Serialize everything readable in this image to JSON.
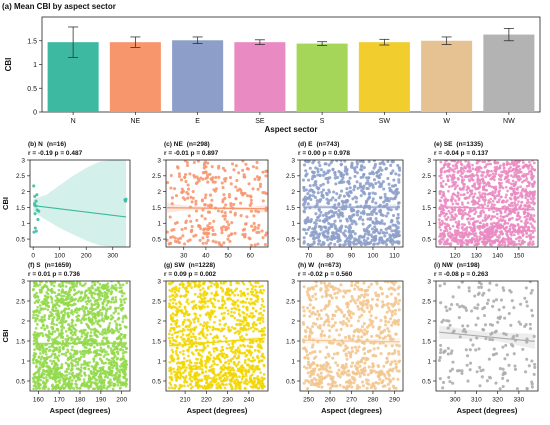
{
  "chart_data": [
    {
      "type": "bar",
      "title": "(a) Mean CBI by aspect sector",
      "xlabel": "Aspect sector",
      "ylabel": "CBI",
      "ylim": [
        0,
        2.0
      ],
      "yticks": [
        0.0,
        0.5,
        1.0,
        1.5
      ],
      "grid": false,
      "categories": [
        "N",
        "NE",
        "E",
        "SE",
        "S",
        "SW",
        "W",
        "NW"
      ],
      "values": [
        1.47,
        1.47,
        1.51,
        1.47,
        1.44,
        1.47,
        1.5,
        1.63
      ],
      "error": [
        0.32,
        0.11,
        0.07,
        0.05,
        0.04,
        0.06,
        0.08,
        0.13
      ],
      "colors": [
        "#3cb9a0",
        "#f7956d",
        "#8d9fc9",
        "#e98ac2",
        "#a5d65a",
        "#f2cd2e",
        "#e6c292",
        "#b3b3b3"
      ]
    },
    {
      "type": "scatter",
      "panel": "(b) N",
      "n": "(n=16)",
      "stats": "r = -0.19  p = 0.487",
      "color": "#3cb9a0",
      "xlim": [
        -12,
        365
      ],
      "xticks": [
        0,
        100,
        200,
        300
      ],
      "ylim": [
        0.25,
        3.0
      ],
      "yticks": [
        0.5,
        1.0,
        1.5,
        2.0,
        2.5,
        3.0
      ],
      "ylabel": "CBI",
      "xlabel": "",
      "trend": {
        "x": [
          0,
          350
        ],
        "y": [
          1.56,
          1.2
        ]
      },
      "band": {
        "x": [
          0,
          50,
          100,
          150,
          200,
          250,
          300,
          350
        ],
        "lo": [
          1.36,
          1.1,
          0.85,
          0.65,
          0.45,
          0.3,
          0.25,
          0.25
        ],
        "hi": [
          1.76,
          1.9,
          2.2,
          2.5,
          2.75,
          2.95,
          3.0,
          3.0
        ]
      },
      "x": [
        2,
        3,
        5,
        6,
        7,
        8,
        10,
        11,
        12,
        14,
        15,
        18,
        21,
        346,
        348,
        350
      ],
      "y": [
        2.18,
        0.72,
        1.62,
        1.85,
        1.3,
        0.85,
        1.55,
        1.7,
        0.75,
        1.9,
        1.42,
        1.12,
        1.38,
        1.74,
        1.7,
        1.76
      ]
    },
    {
      "type": "scatter",
      "panel": "(c) NE",
      "n": "(n=298)",
      "stats": "r = -0.01  p = 0.897",
      "color": "#f7956d",
      "xlim": [
        22,
        68
      ],
      "xticks": [
        30,
        40,
        50,
        60
      ],
      "ylim": [
        0.25,
        3.0
      ],
      "yticks": [
        0.5,
        1.0,
        1.5,
        2.0,
        2.5,
        3.0
      ],
      "ylabel": "",
      "xlabel": "",
      "n_points": 298,
      "seed": 21,
      "trend": {
        "x": [
          22.5,
          67.5
        ],
        "y": [
          1.49,
          1.46
        ]
      },
      "band": {
        "x": [
          22.5,
          30,
          45,
          60,
          67.5
        ],
        "lo": [
          1.33,
          1.4,
          1.44,
          1.4,
          1.33
        ],
        "hi": [
          1.65,
          1.56,
          1.51,
          1.52,
          1.59
        ]
      }
    },
    {
      "type": "scatter",
      "panel": "(d) E",
      "n": "(n=743)",
      "stats": "r = 0.00  p = 0.978",
      "color": "#8d9fc9",
      "xlim": [
        66,
        114
      ],
      "xticks": [
        70,
        80,
        90,
        100,
        110
      ],
      "ylim": [
        0.25,
        3.0
      ],
      "yticks": [
        0.5,
        1.0,
        1.5,
        2.0,
        2.5,
        3.0
      ],
      "ylabel": "",
      "xlabel": "",
      "n_points": 743,
      "seed": 37,
      "trend": {
        "x": [
          67.5,
          112.5
        ],
        "y": [
          1.51,
          1.51
        ]
      },
      "band": {
        "x": [
          67.5,
          90,
          112.5
        ],
        "lo": [
          1.42,
          1.48,
          1.42
        ],
        "hi": [
          1.6,
          1.54,
          1.6
        ]
      }
    },
    {
      "type": "scatter",
      "panel": "(e) SE",
      "n": "(n=1335)",
      "stats": "r = -0.04  p = 0.137",
      "color": "#e98ac2",
      "xlim": [
        111,
        159
      ],
      "xticks": [
        120,
        130,
        140,
        150
      ],
      "ylim": [
        0.25,
        3.0
      ],
      "yticks": [
        0.5,
        1.0,
        1.5,
        2.0,
        2.5,
        3.0
      ],
      "ylabel": "",
      "xlabel": "",
      "n_points": 1335,
      "seed": 53,
      "trend": {
        "x": [
          112.5,
          157.5
        ],
        "y": [
          1.52,
          1.43
        ]
      },
      "band": {
        "x": [
          112.5,
          135,
          157.5
        ],
        "lo": [
          1.46,
          1.45,
          1.37
        ],
        "hi": [
          1.58,
          1.5,
          1.49
        ]
      }
    },
    {
      "type": "scatter",
      "panel": "(f) S",
      "n": "(n=1659)",
      "stats": "r = 0.01  p = 0.736",
      "color": "#93d94b",
      "xlim": [
        156,
        204
      ],
      "xticks": [
        160,
        170,
        180,
        190,
        200
      ],
      "ylim": [
        0.25,
        3.0
      ],
      "yticks": [
        0.5,
        1.0,
        1.5,
        2.0,
        2.5,
        3.0
      ],
      "ylabel": "CBI",
      "xlabel": "Aspect (degrees)",
      "n_points": 1659,
      "seed": 71,
      "trend": {
        "x": [
          157.5,
          202.5
        ],
        "y": [
          1.43,
          1.45
        ]
      },
      "band": {
        "x": [
          157.5,
          180,
          202.5
        ],
        "lo": [
          1.38,
          1.42,
          1.4
        ],
        "hi": [
          1.48,
          1.46,
          1.5
        ]
      }
    },
    {
      "type": "scatter",
      "panel": "(g) SW",
      "n": "(n=1228)",
      "stats": "r = 0.09  p = 0.002",
      "color": "#f2d600",
      "xlim": [
        201,
        249
      ],
      "xticks": [
        210,
        220,
        230,
        240
      ],
      "ylim": [
        0.25,
        3.0
      ],
      "yticks": [
        0.5,
        1.0,
        1.5,
        2.0,
        2.5,
        3.0
      ],
      "ylabel": "",
      "xlabel": "Aspect (degrees)",
      "n_points": 1228,
      "seed": 89,
      "trend": {
        "x": [
          202.5,
          247.5
        ],
        "y": [
          1.38,
          1.57
        ]
      },
      "band": {
        "x": [
          202.5,
          225,
          247.5
        ],
        "lo": [
          1.32,
          1.45,
          1.51
        ],
        "hi": [
          1.44,
          1.5,
          1.63
        ]
      }
    },
    {
      "type": "scatter",
      "panel": "(h) W",
      "n": "(n=673)",
      "stats": "r = -0.02  p = 0.560",
      "color": "#f2c690",
      "xlim": [
        246,
        294
      ],
      "xticks": [
        250,
        260,
        270,
        280,
        290
      ],
      "ylim": [
        0.25,
        3.0
      ],
      "yticks": [
        0.5,
        1.0,
        1.5,
        2.0,
        2.5,
        3.0
      ],
      "ylabel": "",
      "xlabel": "Aspect (degrees)",
      "n_points": 673,
      "seed": 103,
      "trend": {
        "x": [
          247.5,
          292.5
        ],
        "y": [
          1.52,
          1.48
        ]
      },
      "band": {
        "x": [
          247.5,
          270,
          292.5
        ],
        "lo": [
          1.43,
          1.46,
          1.39
        ],
        "hi": [
          1.61,
          1.54,
          1.57
        ]
      }
    },
    {
      "type": "scatter",
      "panel": "(i) NW",
      "n": "(n=198)",
      "stats": "r = -0.08  p = 0.263",
      "color": "#ababab",
      "xlim": [
        291,
        339
      ],
      "xticks": [
        300,
        310,
        320,
        330
      ],
      "ylim": [
        0.25,
        3.0
      ],
      "yticks": [
        0.5,
        1.0,
        1.5,
        2.0,
        2.5,
        3.0
      ],
      "ylabel": "",
      "xlabel": "Aspect (degrees)",
      "n_points": 198,
      "seed": 127,
      "trend": {
        "x": [
          292.5,
          337.5
        ],
        "y": [
          1.72,
          1.49
        ]
      },
      "band": {
        "x": [
          292.5,
          315,
          337.5
        ],
        "lo": [
          1.55,
          1.55,
          1.3
        ],
        "hi": [
          1.89,
          1.72,
          1.68
        ]
      }
    }
  ]
}
